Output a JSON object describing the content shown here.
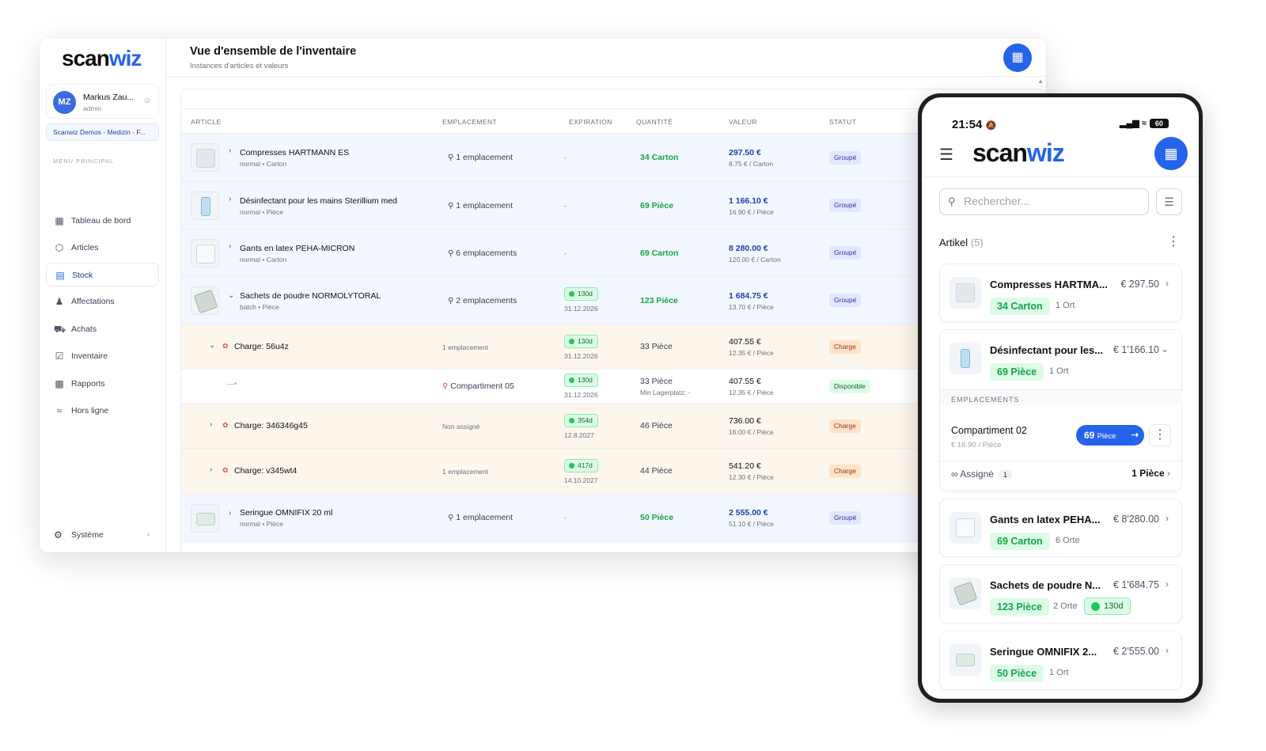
{
  "desktop": {
    "logo": {
      "a": "scan",
      "b": "wiz"
    },
    "user": {
      "initials": "MZ",
      "name": "Markus Zau...",
      "role": "admin"
    },
    "org": "Scanwiz Demos - Medizin - F...",
    "menu_heading": "MENU PRINCIPAL",
    "menu": [
      {
        "label": "Tableau de bord",
        "icon": "dashboard-icon"
      },
      {
        "label": "Articles",
        "icon": "box-icon"
      },
      {
        "label": "Stock",
        "icon": "clipboard-icon",
        "active": true
      },
      {
        "label": "Affectations",
        "icon": "user-assign-icon"
      },
      {
        "label": "Achats",
        "icon": "cart-icon"
      },
      {
        "label": "Inventaire",
        "icon": "checklist-icon"
      },
      {
        "label": "Rapports",
        "icon": "chart-icon"
      },
      {
        "label": "Hors ligne",
        "icon": "wifi-off-icon"
      }
    ],
    "system": "Système",
    "page_title": "Vue d'ensemble de l'inventaire",
    "page_subtitle": "Instances d'articles et valeurs",
    "columns": [
      "ARTICLE",
      "EMPLACEMENT",
      "EXPIRATION",
      "QUANTITÉ",
      "VALEUR",
      "STATUT"
    ],
    "rows": [
      {
        "type": "product",
        "name": "Compresses HARTMANN ES",
        "meta": "normal • Carton",
        "location": "1 emplacement",
        "expiration": "-",
        "qty": "34 Carton",
        "value": "297.50 €",
        "unit_price": "8.75 € / Carton",
        "status": "Groupé"
      },
      {
        "type": "product",
        "name": "Désinfectant pour les mains Sterillium med",
        "meta": "normal • Pièce",
        "location": "1 emplacement",
        "expiration": "-",
        "qty": "69 Pièce",
        "value": "1 166.10 €",
        "unit_price": "16.90 € / Pièce",
        "status": "Groupé"
      },
      {
        "type": "product",
        "name": "Gants en latex PEHA-MICRON",
        "meta": "normal • Carton",
        "location": "6 emplacements",
        "expiration": "-",
        "qty": "69 Carton",
        "value": "8 280.00 €",
        "unit_price": "120.00 € / Carton",
        "status": "Groupé"
      },
      {
        "type": "product",
        "name": "Sachets de poudre NORMOLYTORAL",
        "meta": "batch • Pièce",
        "location": "2 emplacements",
        "exp_badge": "130d",
        "exp_date": "31.12.2026",
        "qty": "123 Pièce",
        "value": "1 684.75 €",
        "unit_price": "13.70 € / Pièce",
        "status": "Groupé"
      },
      {
        "type": "charge",
        "name": "Charge: 56u4z",
        "location": "1 emplacement",
        "exp_badge": "130d",
        "exp_date": "31.12.2026",
        "qty": "33 Pièce",
        "value": "407.55 €",
        "unit_price": "12.35 € / Pièce",
        "status": "Charge"
      },
      {
        "type": "loc",
        "name": "Compartiment 05",
        "exp_badge": "130d",
        "exp_date": "31.12.2026",
        "qty": "33 Pièce",
        "qty_sub": "Min Lagerplatz: -",
        "value": "407.55 €",
        "unit_price": "12.35 € / Pièce",
        "status": "Disponible"
      },
      {
        "type": "charge",
        "name": "Charge: 346346g45",
        "location": "Non assigné",
        "exp_badge": "354d",
        "exp_date": "12.8.2027",
        "qty": "46 Pièce",
        "value": "736.00 €",
        "unit_price": "16.00 € / Pièce",
        "status": "Charge"
      },
      {
        "type": "charge",
        "name": "Charge: v345wt4",
        "location": "1 emplacement",
        "exp_badge": "417d",
        "exp_date": "14.10.2027",
        "qty": "44 Pièce",
        "value": "541.20 €",
        "unit_price": "12.30 € / Pièce",
        "status": "Charge"
      },
      {
        "type": "product",
        "name": "Seringue OMNIFIX 20 ml",
        "meta": "normal • Pièce",
        "location": "1 emplacement",
        "expiration": "-",
        "qty": "50 Pièce",
        "value": "2 555.00 €",
        "unit_price": "51.10 € / Pièce",
        "status": "Groupé"
      }
    ]
  },
  "phone": {
    "time": "21:54",
    "battery": "60",
    "logo": {
      "a": "scan",
      "b": "wiz"
    },
    "search_placeholder": "Rechercher...",
    "list_title": "Artikel",
    "list_count": "(5)",
    "items": [
      {
        "name": "Compresses HARTMA...",
        "price": "€ 297.50",
        "qty": "34 Carton",
        "places": "1 Ort"
      },
      {
        "name": "Désinfectant pour les...",
        "price": "€ 1'166.10",
        "qty": "69 Pièce",
        "places": "1 Ort"
      },
      {
        "name": "Gants en latex PEHA...",
        "price": "€ 8'280.00",
        "qty": "69 Carton",
        "places": "6 Orte"
      },
      {
        "name": "Sachets de poudre N...",
        "price": "€ 1'684.75",
        "qty": "123 Pièce",
        "places": "2 Orte",
        "exp": "130d"
      },
      {
        "name": "Seringue OMNIFIX 2...",
        "price": "€ 2'555.00",
        "qty": "50 Pièce",
        "places": "1 Ort"
      }
    ],
    "expanded": {
      "heading": "EMPLACEMENTS",
      "location": "Compartiment 02",
      "location_sub": "€ 16.90 / Pièce",
      "btn_qty": "69",
      "btn_unit": "Pièce",
      "assigned_label": "Assigné",
      "assigned_count": "1",
      "assigned_qty": "1 Pièce"
    }
  }
}
